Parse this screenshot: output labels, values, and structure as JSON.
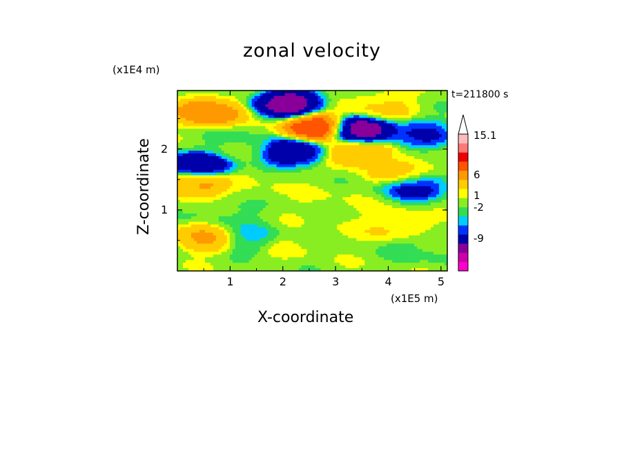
{
  "chart_data": {
    "type": "heatmap",
    "title": "zonal velocity",
    "xlabel": "X-coordinate",
    "ylabel": "Z-coordinate",
    "x_unit": "(x1E5 m)",
    "y_unit": "(x1E4 m)",
    "time_label": "t=211800 s",
    "xlim": [
      0,
      5.12
    ],
    "ylim": [
      0,
      2.96
    ],
    "x_ticks": [
      "1",
      "2",
      "3",
      "4",
      "5"
    ],
    "y_ticks": [
      "1",
      "2"
    ],
    "colorbar_labels": [
      "15.1",
      "6",
      "1",
      "-2",
      "-9"
    ],
    "colorbar_colors": [
      "#ff00cc",
      "#cc00aa",
      "#880099",
      "#0000aa",
      "#0033ff",
      "#00ccff",
      "#33dd55",
      "#88ee22",
      "#ffff00",
      "#ffcc00",
      "#ff9900",
      "#ff5500",
      "#ee0000",
      "#ff7777",
      "#ffbbbb"
    ],
    "field_features": [
      {
        "x": 0.6,
        "z": 2.6,
        "value": 6
      },
      {
        "x": 2.1,
        "z": 2.75,
        "value": -9
      },
      {
        "x": 2.6,
        "z": 2.35,
        "value": 8
      },
      {
        "x": 3.5,
        "z": 2.3,
        "value": -9
      },
      {
        "x": 2.2,
        "z": 1.95,
        "value": -6
      },
      {
        "x": 0.4,
        "z": 1.7,
        "value": -7
      },
      {
        "x": 0.35,
        "z": 1.45,
        "value": 5
      },
      {
        "x": 4.6,
        "z": 2.25,
        "value": -4
      },
      {
        "x": 3.4,
        "z": 1.95,
        "value": 4
      },
      {
        "x": 4.3,
        "z": 1.6,
        "value": 3
      },
      {
        "x": 4.5,
        "z": 1.4,
        "value": -5
      },
      {
        "x": 1.5,
        "z": 1.4,
        "value": 0.5
      },
      {
        "x": 2.8,
        "z": 1.2,
        "value": 0.5
      },
      {
        "x": 1.0,
        "z": 0.9,
        "value": -1
      },
      {
        "x": 3.4,
        "z": 0.85,
        "value": 0.5
      },
      {
        "x": 0.6,
        "z": 0.55,
        "value": 4
      },
      {
        "x": 1.3,
        "z": 0.55,
        "value": -2
      },
      {
        "x": 4.1,
        "z": 0.75,
        "value": 2
      },
      {
        "x": 2.3,
        "z": 0.4,
        "value": 0.5
      },
      {
        "x": 4.6,
        "z": 0.35,
        "value": -1
      },
      {
        "x": 1.1,
        "z": 2.1,
        "value": -1
      },
      {
        "x": 3.9,
        "z": 2.7,
        "value": 2
      }
    ]
  }
}
